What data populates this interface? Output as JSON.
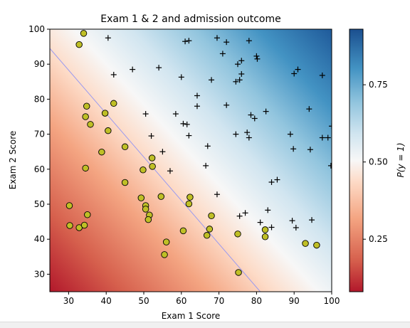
{
  "chart_data": {
    "type": "scatter",
    "title": "Exam 1 & 2 and admission outcome",
    "xlabel": "Exam 1 Score",
    "ylabel": "Exam 2 Score",
    "xlim": [
      25,
      100
    ],
    "ylim": [
      25,
      100
    ],
    "xticks": [
      "30",
      "40",
      "50",
      "60",
      "70",
      "80",
      "90",
      "100"
    ],
    "yticks": [
      "30",
      "40",
      "50",
      "60",
      "70",
      "80",
      "90",
      "100"
    ],
    "grid": false,
    "background": "logistic probability gradient",
    "decision_boundary": {
      "x": [
        25,
        81
      ],
      "y": [
        94.5,
        25
      ]
    },
    "colorbar": {
      "label": "P(y = 1)",
      "range": [
        0.08,
        0.93
      ],
      "ticks": [
        "0.25",
        "0.50",
        "0.75"
      ],
      "tick_values": [
        0.25,
        0.5,
        0.75
      ],
      "colormap": "RdBu"
    },
    "colors": {
      "admitted_marker": "#000000",
      "not_admitted_fill": "#bfbf26",
      "boundary_line": "#9a9af0"
    },
    "series": [
      {
        "marker": "plus",
        "points": [
          [
            40.5,
            97.5
          ],
          [
            61,
            96.5
          ],
          [
            62,
            96.7
          ],
          [
            69.5,
            97.5
          ],
          [
            72,
            96.3
          ],
          [
            78,
            96.7
          ],
          [
            42,
            87
          ],
          [
            47,
            88.5
          ],
          [
            54,
            89
          ],
          [
            60,
            86.3
          ],
          [
            68,
            85.5
          ],
          [
            71,
            93
          ],
          [
            75,
            90
          ],
          [
            76,
            91
          ],
          [
            74.5,
            85
          ],
          [
            75.5,
            85.5
          ],
          [
            76,
            87.2
          ],
          [
            80,
            92.3
          ],
          [
            80.2,
            91.5
          ],
          [
            90,
            87.3
          ],
          [
            91,
            88.5
          ],
          [
            97.5,
            86.8
          ],
          [
            64.2,
            81
          ],
          [
            64.2,
            78
          ],
          [
            72,
            78.3
          ],
          [
            50.5,
            75.8
          ],
          [
            58.5,
            75.8
          ],
          [
            60.5,
            73
          ],
          [
            61.5,
            72.8
          ],
          [
            62,
            69.6
          ],
          [
            52,
            69.5
          ],
          [
            74.5,
            70
          ],
          [
            77.5,
            70.5
          ],
          [
            78,
            69
          ],
          [
            78.5,
            75.5
          ],
          [
            79.5,
            74.5
          ],
          [
            82.5,
            76.5
          ],
          [
            94,
            77.2
          ],
          [
            89,
            70
          ],
          [
            89.8,
            65.8
          ],
          [
            94.3,
            65.6
          ],
          [
            97.5,
            69
          ],
          [
            99,
            69
          ],
          [
            100,
            72.3
          ],
          [
            99.8,
            61
          ],
          [
            55,
            65
          ],
          [
            57,
            59.5
          ],
          [
            66.5,
            61
          ],
          [
            67,
            66.6
          ],
          [
            69.5,
            52.8
          ],
          [
            75.5,
            46.6
          ],
          [
            77,
            47.5
          ],
          [
            81,
            44.8
          ],
          [
            83,
            48.3
          ],
          [
            84,
            43.4
          ],
          [
            84,
            56.3
          ],
          [
            85.5,
            57
          ],
          [
            89.5,
            45.3
          ],
          [
            90.5,
            43.3
          ],
          [
            94.7,
            45.5
          ]
        ]
      },
      {
        "marker": "circle",
        "points": [
          [
            34,
            98.8
          ],
          [
            32.8,
            95.6
          ],
          [
            42,
            78.8
          ],
          [
            34.8,
            78
          ],
          [
            34.5,
            75
          ],
          [
            35.8,
            72.8
          ],
          [
            39.7,
            76
          ],
          [
            40.5,
            71
          ],
          [
            38.8,
            64.9
          ],
          [
            45,
            66.4
          ],
          [
            34.5,
            60.3
          ],
          [
            49.8,
            59.8
          ],
          [
            52.2,
            63.2
          ],
          [
            52.3,
            60.8
          ],
          [
            45,
            56.2
          ],
          [
            49.3,
            51.8
          ],
          [
            50.5,
            49.6
          ],
          [
            50.5,
            48.6
          ],
          [
            51.5,
            46.9
          ],
          [
            51.2,
            45.6
          ],
          [
            54.6,
            52.2
          ],
          [
            56,
            39.2
          ],
          [
            55.5,
            35.6
          ],
          [
            62.3,
            52
          ],
          [
            62,
            50.1
          ],
          [
            68,
            46.7
          ],
          [
            67.5,
            42.9
          ],
          [
            66.8,
            41.1
          ],
          [
            60.5,
            42.4
          ],
          [
            75,
            41.5
          ],
          [
            75.2,
            30.5
          ],
          [
            82.3,
            42.7
          ],
          [
            82.3,
            40.7
          ],
          [
            93,
            38.8
          ],
          [
            96,
            38.3
          ],
          [
            30.2,
            49.6
          ],
          [
            30.3,
            43.9
          ],
          [
            32.8,
            43.3
          ],
          [
            34.2,
            44
          ],
          [
            35,
            47
          ]
        ]
      }
    ]
  }
}
